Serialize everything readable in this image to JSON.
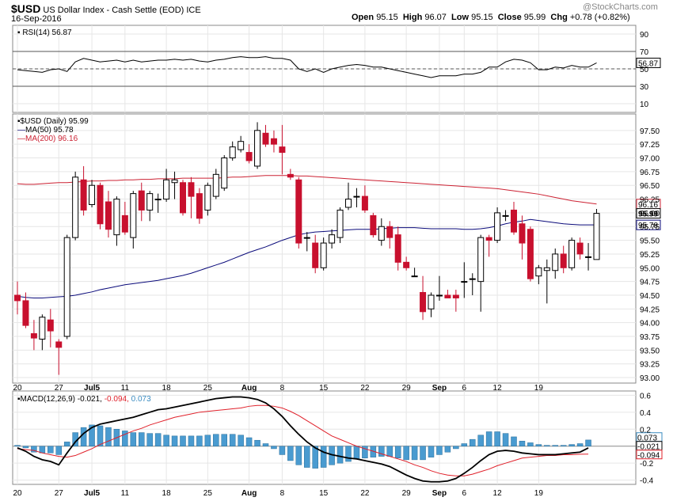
{
  "header": {
    "symbol": "$USD",
    "name": "US Dollar Index - Cash Settle (EOD)",
    "exchange": "ICE",
    "date": "16-Sep-2016",
    "watermark": "@StockCharts.com",
    "open_label": "Open",
    "open": "95.15",
    "high_label": "High",
    "high": "96.07",
    "low_label": "Low",
    "low": "95.15",
    "close_label": "Close",
    "close": "95.99",
    "chg_label": "Chg",
    "chg": "+0.78 (+0.82%)"
  },
  "rsi": {
    "label": "RSI(14) 56.87",
    "ticks": [
      "90",
      "70",
      "50",
      "30",
      "10"
    ],
    "tick_values": [
      90,
      70,
      50,
      30,
      10
    ],
    "badge": "56.87",
    "last": 56.87
  },
  "price": {
    "legend_main": "$USD (Daily) 95.99",
    "legend_ma50": "MA(50) 95.78",
    "legend_ma200": "MA(200) 96.16",
    "ticks": [
      "97.50",
      "97.25",
      "97.00",
      "96.75",
      "96.50",
      "96.25",
      "96.00",
      "95.75",
      "95.50",
      "95.25",
      "95.00",
      "94.75",
      "94.50",
      "94.25",
      "94.00",
      "93.75",
      "93.50",
      "93.25",
      "93.00"
    ],
    "tick_values": [
      97.5,
      97.25,
      97.0,
      96.75,
      96.5,
      96.25,
      96.0,
      95.75,
      95.5,
      95.25,
      95.0,
      94.75,
      94.5,
      94.25,
      94.0,
      93.75,
      93.5,
      93.25,
      93.0
    ],
    "badges": {
      "ma200": "96.16",
      "close": "95.99",
      "ma50": "95.78"
    }
  },
  "macd": {
    "label_prefix": "MACD(12,26,9)",
    "macd_value": "-0.021,",
    "signal_value": "-0.094,",
    "hist_value": "0.073",
    "ticks": [
      "0.6",
      "0.4",
      "0.2",
      "-0.2",
      "-0.4"
    ],
    "tick_values": [
      0.6,
      0.4,
      0.2,
      -0.2,
      -0.4
    ],
    "badges": {
      "hist": "0.073",
      "macd": "-0.021",
      "signal": "-0.094"
    }
  },
  "x_axis": {
    "labels": [
      "20",
      "27",
      "Jul5",
      "11",
      "18",
      "25",
      "Aug",
      "8",
      "15",
      "22",
      "29",
      "Sep",
      "6",
      "12",
      "19"
    ],
    "bold": [
      "Jul5",
      "Aug",
      "Sep"
    ],
    "slots": [
      0,
      5,
      9,
      13,
      18,
      23,
      28,
      32,
      37,
      42,
      47,
      51,
      54,
      58,
      63
    ]
  },
  "colors": {
    "up": "#ffffff",
    "down": "#c8102e",
    "ma50": "#0a0a7a",
    "ma200": "#cc2233",
    "hist": "#4a9bd0",
    "signal": "#e0202a",
    "grid": "#e6e6e6"
  },
  "chart_data": {
    "type": "candlestick",
    "title": "$USD US Dollar Index - Cash Settle (EOD)",
    "xlabel": "",
    "ylabel": "",
    "ylim": [
      92.9,
      97.8
    ],
    "candles": [
      {
        "o": 94.5,
        "h": 94.75,
        "l": 94.15,
        "c": 94.4
      },
      {
        "o": 94.4,
        "h": 94.55,
        "l": 93.9,
        "c": 93.95
      },
      {
        "o": 93.8,
        "h": 94.05,
        "l": 93.5,
        "c": 93.72
      },
      {
        "o": 93.7,
        "h": 94.15,
        "l": 93.5,
        "c": 94.1
      },
      {
        "o": 94.05,
        "h": 94.25,
        "l": 93.55,
        "c": 93.85
      },
      {
        "o": 93.65,
        "h": 93.7,
        "l": 93.05,
        "c": 93.55
      },
      {
        "o": 93.75,
        "h": 95.6,
        "l": 93.7,
        "c": 95.55
      },
      {
        "o": 95.55,
        "h": 96.75,
        "l": 95.5,
        "c": 96.65
      },
      {
        "o": 96.6,
        "h": 96.85,
        "l": 95.95,
        "c": 96.05
      },
      {
        "o": 96.15,
        "h": 96.6,
        "l": 96.1,
        "c": 96.5
      },
      {
        "o": 96.5,
        "h": 96.55,
        "l": 95.7,
        "c": 95.8
      },
      {
        "o": 96.2,
        "h": 96.4,
        "l": 95.55,
        "c": 95.7
      },
      {
        "o": 95.6,
        "h": 96.3,
        "l": 95.4,
        "c": 96.25
      },
      {
        "o": 95.95,
        "h": 96.2,
        "l": 95.6,
        "c": 95.65
      },
      {
        "o": 95.55,
        "h": 96.4,
        "l": 95.35,
        "c": 96.35
      },
      {
        "o": 96.4,
        "h": 96.55,
        "l": 95.85,
        "c": 96.05
      },
      {
        "o": 96.05,
        "h": 96.4,
        "l": 95.85,
        "c": 96.35
      },
      {
        "o": 96.25,
        "h": 96.35,
        "l": 96.0,
        "c": 96.25
      },
      {
        "o": 96.25,
        "h": 96.8,
        "l": 96.2,
        "c": 96.6
      },
      {
        "o": 96.55,
        "h": 96.75,
        "l": 96.25,
        "c": 96.6
      },
      {
        "o": 96.55,
        "h": 96.6,
        "l": 95.95,
        "c": 96.0
      },
      {
        "o": 96.55,
        "h": 96.65,
        "l": 95.9,
        "c": 96.3
      },
      {
        "o": 96.35,
        "h": 96.45,
        "l": 95.8,
        "c": 95.9
      },
      {
        "o": 96.05,
        "h": 96.55,
        "l": 95.95,
        "c": 96.5
      },
      {
        "o": 96.3,
        "h": 96.8,
        "l": 96.25,
        "c": 96.7
      },
      {
        "o": 96.45,
        "h": 97.05,
        "l": 96.4,
        "c": 97.0
      },
      {
        "o": 97.0,
        "h": 97.3,
        "l": 96.95,
        "c": 97.2
      },
      {
        "o": 97.15,
        "h": 97.4,
        "l": 97.1,
        "c": 97.3
      },
      {
        "o": 97.1,
        "h": 97.25,
        "l": 96.9,
        "c": 96.95
      },
      {
        "o": 96.85,
        "h": 97.65,
        "l": 96.8,
        "c": 97.5
      },
      {
        "o": 97.45,
        "h": 97.6,
        "l": 97.2,
        "c": 97.25
      },
      {
        "o": 97.35,
        "h": 97.5,
        "l": 97.1,
        "c": 97.25
      },
      {
        "o": 97.2,
        "h": 97.6,
        "l": 96.7,
        "c": 97.1
      },
      {
        "o": 96.7,
        "h": 96.8,
        "l": 96.6,
        "c": 96.65
      },
      {
        "o": 96.6,
        "h": 96.65,
        "l": 95.35,
        "c": 95.45
      },
      {
        "o": 95.55,
        "h": 95.65,
        "l": 95.3,
        "c": 95.55
      },
      {
        "o": 95.45,
        "h": 95.6,
        "l": 94.9,
        "c": 95.0
      },
      {
        "o": 95.0,
        "h": 95.55,
        "l": 94.95,
        "c": 95.45
      },
      {
        "o": 95.45,
        "h": 95.7,
        "l": 95.35,
        "c": 95.6
      },
      {
        "o": 95.55,
        "h": 96.1,
        "l": 95.45,
        "c": 96.05
      },
      {
        "o": 96.1,
        "h": 96.55,
        "l": 96.05,
        "c": 96.25
      },
      {
        "o": 96.3,
        "h": 96.45,
        "l": 96.1,
        "c": 96.3
      },
      {
        "o": 96.3,
        "h": 96.5,
        "l": 96.0,
        "c": 96.05
      },
      {
        "o": 95.95,
        "h": 96.0,
        "l": 95.55,
        "c": 95.6
      },
      {
        "o": 95.5,
        "h": 95.9,
        "l": 95.4,
        "c": 95.75
      },
      {
        "o": 95.75,
        "h": 95.85,
        "l": 95.35,
        "c": 95.55
      },
      {
        "o": 95.6,
        "h": 95.75,
        "l": 94.95,
        "c": 95.1
      },
      {
        "o": 95.1,
        "h": 95.2,
        "l": 94.95,
        "c": 95.0
      },
      {
        "o": 94.85,
        "h": 95.0,
        "l": 94.85,
        "c": 94.85
      },
      {
        "o": 94.55,
        "h": 94.85,
        "l": 94.05,
        "c": 94.2
      },
      {
        "o": 94.25,
        "h": 94.55,
        "l": 94.1,
        "c": 94.5
      },
      {
        "o": 94.5,
        "h": 94.85,
        "l": 94.4,
        "c": 94.5
      },
      {
        "o": 94.5,
        "h": 94.6,
        "l": 94.45,
        "c": 94.45
      },
      {
        "o": 94.5,
        "h": 94.6,
        "l": 94.2,
        "c": 94.45
      },
      {
        "o": 94.75,
        "h": 95.1,
        "l": 94.45,
        "c": 94.75
      },
      {
        "o": 94.8,
        "h": 94.9,
        "l": 94.5,
        "c": 94.8
      },
      {
        "o": 94.75,
        "h": 95.6,
        "l": 94.2,
        "c": 95.55
      },
      {
        "o": 95.55,
        "h": 95.6,
        "l": 95.2,
        "c": 95.5
      },
      {
        "o": 95.5,
        "h": 96.1,
        "l": 95.45,
        "c": 96.0
      },
      {
        "o": 95.95,
        "h": 96.05,
        "l": 95.85,
        "c": 95.95
      },
      {
        "o": 96.05,
        "h": 96.2,
        "l": 95.6,
        "c": 95.65
      },
      {
        "o": 95.8,
        "h": 95.95,
        "l": 95.15,
        "c": 95.45
      },
      {
        "o": 95.7,
        "h": 95.75,
        "l": 94.75,
        "c": 94.8
      },
      {
        "o": 94.85,
        "h": 95.05,
        "l": 94.7,
        "c": 95.0
      },
      {
        "o": 94.95,
        "h": 95.15,
        "l": 94.35,
        "c": 95.0
      },
      {
        "o": 94.95,
        "h": 95.35,
        "l": 94.8,
        "c": 95.25
      },
      {
        "o": 95.25,
        "h": 95.4,
        "l": 94.9,
        "c": 95.0
      },
      {
        "o": 95.0,
        "h": 95.55,
        "l": 94.95,
        "c": 95.5
      },
      {
        "o": 95.45,
        "h": 95.55,
        "l": 95.15,
        "c": 95.25
      },
      {
        "o": 95.2,
        "h": 95.45,
        "l": 94.95,
        "c": 95.2
      },
      {
        "o": 95.15,
        "h": 96.07,
        "l": 95.15,
        "c": 95.99
      }
    ],
    "ma50": [
      94.48,
      94.46,
      94.45,
      94.45,
      94.46,
      94.47,
      94.48,
      94.5,
      94.53,
      94.56,
      94.6,
      94.63,
      94.66,
      94.69,
      94.71,
      94.73,
      94.75,
      94.77,
      94.8,
      94.83,
      94.86,
      94.9,
      94.95,
      95.0,
      95.05,
      95.1,
      95.16,
      95.22,
      95.28,
      95.33,
      95.38,
      95.44,
      95.5,
      95.55,
      95.6,
      95.63,
      95.65,
      95.66,
      95.67,
      95.68,
      95.69,
      95.7,
      95.7,
      95.7,
      95.71,
      95.72,
      95.73,
      95.73,
      95.73,
      95.72,
      95.71,
      95.71,
      95.71,
      95.71,
      95.7,
      95.7,
      95.71,
      95.73,
      95.76,
      95.8,
      95.83,
      95.85,
      95.88,
      95.86,
      95.84,
      95.82,
      95.8,
      95.79,
      95.78,
      95.78,
      95.78
    ],
    "ma200": [
      96.53,
      96.52,
      96.52,
      96.53,
      96.54,
      96.55,
      96.55,
      96.56,
      96.57,
      96.58,
      96.58,
      96.59,
      96.59,
      96.6,
      96.6,
      96.61,
      96.61,
      96.62,
      96.62,
      96.62,
      96.63,
      96.63,
      96.63,
      96.63,
      96.63,
      96.64,
      96.65,
      96.65,
      96.66,
      96.67,
      96.68,
      96.68,
      96.68,
      96.68,
      96.67,
      96.67,
      96.66,
      96.65,
      96.64,
      96.63,
      96.62,
      96.61,
      96.6,
      96.59,
      96.58,
      96.57,
      96.56,
      96.55,
      96.54,
      96.53,
      96.52,
      96.51,
      96.5,
      96.49,
      96.48,
      96.47,
      96.46,
      96.45,
      96.44,
      96.42,
      96.4,
      96.38,
      96.36,
      96.34,
      96.31,
      96.28,
      96.25,
      96.22,
      96.2,
      96.18,
      96.16
    ],
    "rsi": [
      49,
      48,
      47,
      46,
      49,
      50,
      47,
      58,
      62,
      60,
      58,
      59,
      60,
      58,
      60,
      58,
      59,
      60,
      60,
      61,
      60,
      61,
      59,
      58,
      60,
      61,
      63,
      64,
      63,
      63,
      64,
      62,
      62,
      60,
      50,
      47,
      50,
      46,
      50,
      52,
      54,
      55,
      54,
      52,
      52,
      50,
      48,
      46,
      44,
      42,
      40,
      42,
      42,
      42,
      44,
      44,
      46,
      52,
      52,
      58,
      61,
      60,
      57,
      49,
      49,
      52,
      51,
      54,
      52,
      52,
      56.87
    ],
    "macd": [
      -0.02,
      -0.06,
      -0.12,
      -0.16,
      -0.18,
      -0.22,
      -0.08,
      0.05,
      0.15,
      0.22,
      0.26,
      0.28,
      0.3,
      0.32,
      0.34,
      0.37,
      0.4,
      0.43,
      0.44,
      0.46,
      0.48,
      0.5,
      0.52,
      0.54,
      0.56,
      0.57,
      0.58,
      0.58,
      0.57,
      0.55,
      0.51,
      0.44,
      0.35,
      0.24,
      0.14,
      0.05,
      -0.02,
      -0.07,
      -0.1,
      -0.12,
      -0.14,
      -0.15,
      -0.17,
      -0.19,
      -0.21,
      -0.24,
      -0.29,
      -0.34,
      -0.38,
      -0.41,
      -0.42,
      -0.42,
      -0.41,
      -0.38,
      -0.32,
      -0.25,
      -0.17,
      -0.1,
      -0.06,
      -0.05,
      -0.06,
      -0.08,
      -0.09,
      -0.1,
      -0.1,
      -0.1,
      -0.09,
      -0.08,
      -0.07,
      -0.021
    ],
    "signal": [
      -0.03,
      -0.04,
      -0.05,
      -0.08,
      -0.1,
      -0.12,
      -0.13,
      -0.11,
      -0.07,
      -0.03,
      0.02,
      0.06,
      0.1,
      0.14,
      0.18,
      0.21,
      0.25,
      0.28,
      0.31,
      0.34,
      0.36,
      0.38,
      0.4,
      0.41,
      0.42,
      0.43,
      0.44,
      0.45,
      0.47,
      0.48,
      0.48,
      0.47,
      0.45,
      0.41,
      0.36,
      0.3,
      0.24,
      0.18,
      0.12,
      0.08,
      0.04,
      0.0,
      -0.03,
      -0.06,
      -0.09,
      -0.12,
      -0.15,
      -0.18,
      -0.22,
      -0.25,
      -0.29,
      -0.32,
      -0.34,
      -0.35,
      -0.35,
      -0.33,
      -0.3,
      -0.27,
      -0.23,
      -0.2,
      -0.17,
      -0.14,
      -0.13,
      -0.12,
      -0.11,
      -0.11,
      -0.1,
      -0.1,
      -0.095,
      -0.094
    ],
    "histogram": [
      0.01,
      -0.02,
      -0.07,
      -0.08,
      -0.08,
      -0.1,
      0.05,
      0.16,
      0.22,
      0.25,
      0.24,
      0.22,
      0.2,
      0.18,
      0.16,
      0.16,
      0.15,
      0.15,
      0.13,
      0.12,
      0.12,
      0.12,
      0.12,
      0.13,
      0.14,
      0.14,
      0.14,
      0.13,
      0.1,
      0.07,
      0.03,
      -0.03,
      -0.1,
      -0.17,
      -0.22,
      -0.25,
      -0.26,
      -0.25,
      -0.22,
      -0.2,
      -0.18,
      -0.15,
      -0.14,
      -0.13,
      -0.12,
      -0.12,
      -0.14,
      -0.16,
      -0.16,
      -0.16,
      -0.13,
      -0.1,
      -0.07,
      -0.03,
      0.03,
      0.08,
      0.13,
      0.17,
      0.17,
      0.15,
      0.11,
      0.06,
      0.04,
      0.02,
      0.01,
      0.01,
      0.01,
      0.02,
      0.03,
      0.073
    ],
    "macd_ylim": [
      -0.45,
      0.65
    ]
  }
}
